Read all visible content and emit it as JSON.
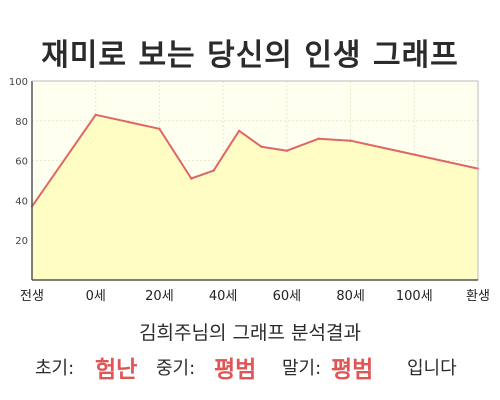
{
  "title": "재미로 보는 당신의 인생 그래프",
  "subtitle": "김희주님의 그래프 분석결과",
  "result": {
    "early_label": "초기:",
    "early_value": "험난",
    "mid_label": "중기:",
    "mid_value": "평범",
    "late_label": "말기:",
    "late_value": "평범",
    "ending": "입니다"
  },
  "colors": {
    "line": "#e06666",
    "fill": "#fffdc4",
    "plot_background": "#fffff0",
    "grid": "#e8e8c8",
    "axis": "#555555",
    "accent_text": "#e05555"
  },
  "chart_data": {
    "type": "area",
    "title": "재미로 보는 당신의 인생 그래프",
    "xlabel": "",
    "ylabel": "",
    "ylim": [
      0,
      100
    ],
    "yticks": [
      100,
      80,
      60,
      40,
      20
    ],
    "x_tick_labels": [
      "전생",
      "0세",
      "20세",
      "40세",
      "60세",
      "80세",
      "100세",
      "환생"
    ],
    "x_ticks_at": [
      -20,
      0,
      20,
      40,
      60,
      80,
      100,
      120
    ],
    "x_range": [
      -20,
      120
    ],
    "grid": true,
    "series": [
      {
        "x": [
          -20,
          0,
          20,
          30,
          37,
          45,
          52,
          60,
          70,
          80,
          100,
          120
        ],
        "values": [
          37,
          83,
          76,
          51,
          55,
          75,
          67,
          65,
          71,
          70,
          63,
          56
        ]
      }
    ]
  }
}
